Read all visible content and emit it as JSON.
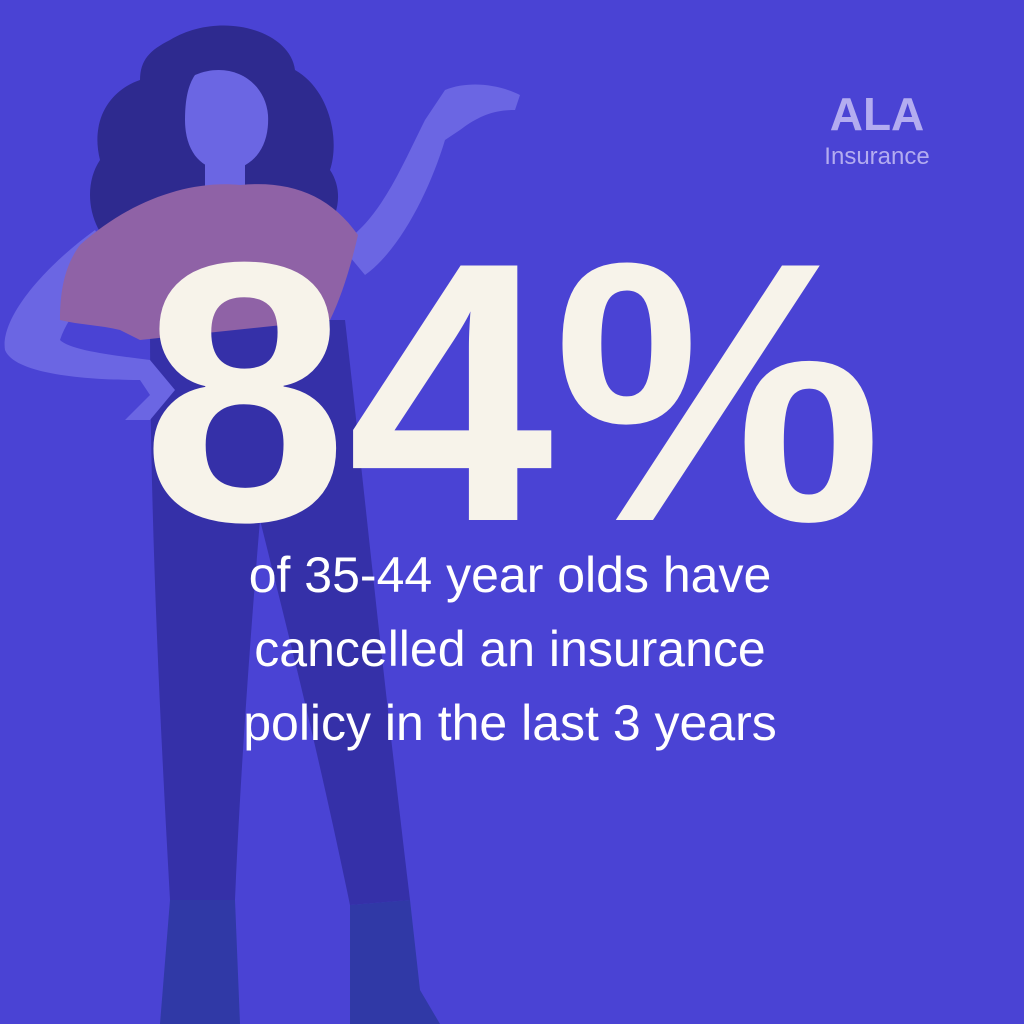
{
  "brand": {
    "name": "ALA",
    "tagline": "Insurance"
  },
  "headline": "84%",
  "caption": [
    "of 35-44 year olds have",
    "cancelled an insurance",
    "policy in the last 3 years"
  ]
}
